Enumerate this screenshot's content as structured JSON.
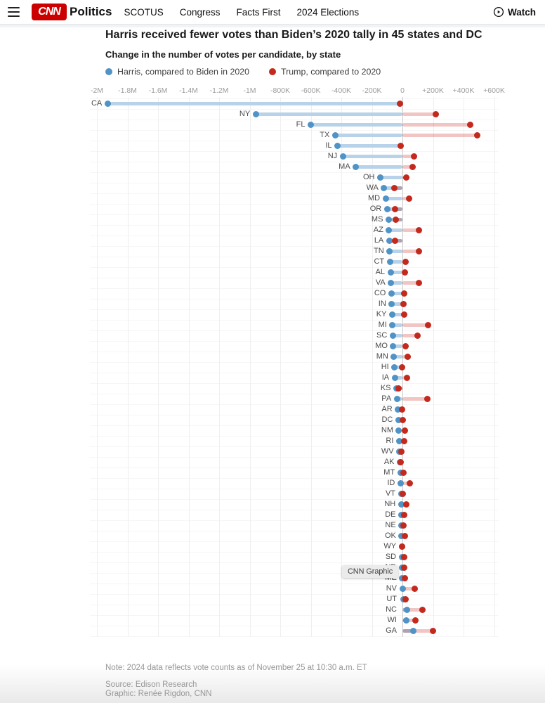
{
  "header": {
    "brand": "CNN",
    "section": "Politics",
    "nav": [
      "SCOTUS",
      "Congress",
      "Facts First",
      "2024 Elections"
    ],
    "watch_label": "Watch"
  },
  "chart_data": {
    "type": "dumbbell",
    "title": "Harris received fewer votes than Biden’s 2020 tally in 45 states and DC",
    "subtitle": "Change in the number of votes per candidate, by state",
    "legend": [
      {
        "label": "Harris, compared to Biden in 2020",
        "color": "#4f93c7"
      },
      {
        "label": "Trump, compared to 2020",
        "color": "#c4291d"
      }
    ],
    "colors": {
      "harris": "#4f93c7",
      "harris_light": "#b8d2e9",
      "trump": "#c4291d",
      "trump_light": "#f1c5c3",
      "zero_line": "#c8c8c8"
    },
    "x_axis": {
      "tick_labels": [
        "-2M",
        "-1.8M",
        "-1.6M",
        "-1.4M",
        "-1.2M",
        "-1M",
        "-800K",
        "-600K",
        "-400K",
        "-200K",
        "0",
        "+200K",
        "+400K",
        "+600K"
      ],
      "tick_values_k": [
        -2000,
        -1800,
        -1600,
        -1400,
        -1200,
        -1000,
        -800,
        -600,
        -400,
        -200,
        0,
        200,
        400,
        600
      ],
      "unit": "votes, thousands"
    },
    "states": [
      {
        "abbr": "CA",
        "harris_k": -1930,
        "trump_k": -15
      },
      {
        "abbr": "NY",
        "harris_k": -960,
        "trump_k": 220
      },
      {
        "abbr": "FL",
        "harris_k": -600,
        "trump_k": 445
      },
      {
        "abbr": "TX",
        "harris_k": -440,
        "trump_k": 490
      },
      {
        "abbr": "IL",
        "harris_k": -425,
        "trump_k": -10
      },
      {
        "abbr": "NJ",
        "harris_k": -390,
        "trump_k": 77
      },
      {
        "abbr": "MA",
        "harris_k": -305,
        "trump_k": 65
      },
      {
        "abbr": "OH",
        "harris_k": -145,
        "trump_k": 25
      },
      {
        "abbr": "WA",
        "harris_k": -120,
        "trump_k": -55
      },
      {
        "abbr": "MD",
        "harris_k": -110,
        "trump_k": 45
      },
      {
        "abbr": "OR",
        "harris_k": -100,
        "trump_k": -50
      },
      {
        "abbr": "MS",
        "harris_k": -90,
        "trump_k": -42
      },
      {
        "abbr": "AZ",
        "harris_k": -88,
        "trump_k": 109
      },
      {
        "abbr": "LA",
        "harris_k": -86,
        "trump_k": -47
      },
      {
        "abbr": "TN",
        "harris_k": -84,
        "trump_k": 110
      },
      {
        "abbr": "CT",
        "harris_k": -82,
        "trump_k": 20
      },
      {
        "abbr": "AL",
        "harris_k": -78,
        "trump_k": 15
      },
      {
        "abbr": "VA",
        "harris_k": -75,
        "trump_k": 110
      },
      {
        "abbr": "CO",
        "harris_k": -72,
        "trump_k": 10
      },
      {
        "abbr": "IN",
        "harris_k": -70,
        "trump_k": 8
      },
      {
        "abbr": "KY",
        "harris_k": -67,
        "trump_k": 12
      },
      {
        "abbr": "MI",
        "harris_k": -65,
        "trump_k": 168
      },
      {
        "abbr": "SC",
        "harris_k": -63,
        "trump_k": 97
      },
      {
        "abbr": "MO",
        "harris_k": -60,
        "trump_k": 22
      },
      {
        "abbr": "MN",
        "harris_k": -56,
        "trump_k": 35
      },
      {
        "abbr": "HI",
        "harris_k": -52,
        "trump_k": -4
      },
      {
        "abbr": "IA",
        "harris_k": -50,
        "trump_k": 28
      },
      {
        "abbr": "KS",
        "harris_k": -39,
        "trump_k": -25
      },
      {
        "abbr": "PA",
        "harris_k": -36,
        "trump_k": 162
      },
      {
        "abbr": "AR",
        "harris_k": -29,
        "trump_k": -2
      },
      {
        "abbr": "DC",
        "harris_k": -26,
        "trump_k": 3
      },
      {
        "abbr": "NM",
        "harris_k": -23,
        "trump_k": 15
      },
      {
        "abbr": "RI",
        "harris_k": -21,
        "trump_k": 10
      },
      {
        "abbr": "WV",
        "harris_k": -20,
        "trump_k": -8
      },
      {
        "abbr": "AK",
        "harris_k": -16,
        "trump_k": -10
      },
      {
        "abbr": "MT",
        "harris_k": -13,
        "trump_k": 5
      },
      {
        "abbr": "ID",
        "harris_k": -12,
        "trump_k": 48
      },
      {
        "abbr": "VT",
        "harris_k": -9,
        "trump_k": 4
      },
      {
        "abbr": "NH",
        "harris_k": -8,
        "trump_k": 25
      },
      {
        "abbr": "DE",
        "harris_k": -7,
        "trump_k": 12
      },
      {
        "abbr": "NE",
        "harris_k": -6,
        "trump_k": 8
      },
      {
        "abbr": "OK",
        "harris_k": -5,
        "trump_k": 15
      },
      {
        "abbr": "WY",
        "harris_k": -4,
        "trump_k": -1
      },
      {
        "abbr": "SD",
        "harris_k": -4,
        "trump_k": 10
      },
      {
        "abbr": "ND",
        "harris_k": -3,
        "trump_k": 10
      },
      {
        "abbr": "ME",
        "harris_k": -1,
        "trump_k": 16
      },
      {
        "abbr": "NV",
        "harris_k": 2,
        "trump_k": 80
      },
      {
        "abbr": "UT",
        "harris_k": 8,
        "trump_k": 20
      },
      {
        "abbr": "NC",
        "harris_k": 32,
        "trump_k": 131
      },
      {
        "abbr": "WI",
        "harris_k": 25,
        "trump_k": 87
      },
      {
        "abbr": "GA",
        "harris_k": 70,
        "trump_k": 200
      }
    ]
  },
  "annotations": {
    "credit_tooltip": "CNN Graphic"
  },
  "footer": {
    "note": "Note: 2024 data reflects vote counts as of November 25 at 10:30 a.m. ET",
    "source": "Source: Edison Research",
    "credit": "Graphic: Renée Rigdon, CNN"
  }
}
